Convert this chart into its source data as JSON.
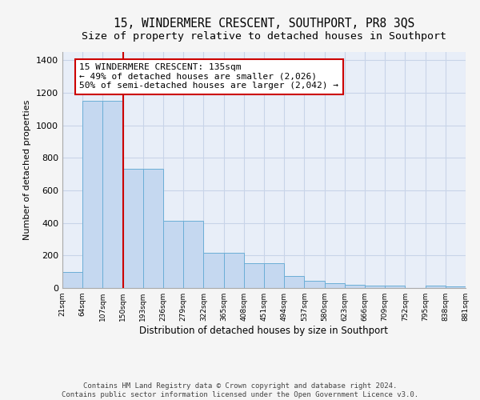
{
  "title": "15, WINDERMERE CRESCENT, SOUTHPORT, PR8 3QS",
  "subtitle": "Size of property relative to detached houses in Southport",
  "xlabel": "Distribution of detached houses by size in Southport",
  "ylabel": "Number of detached properties",
  "bar_values": [
    100,
    1150,
    1150,
    730,
    730,
    415,
    415,
    215,
    215,
    150,
    150,
    75,
    45,
    30,
    20,
    15,
    15,
    2,
    15,
    10
  ],
  "bar_color": "#c5d8f0",
  "bar_edge_color": "#6baed6",
  "x_labels": [
    "21sqm",
    "64sqm",
    "107sqm",
    "150sqm",
    "193sqm",
    "236sqm",
    "279sqm",
    "322sqm",
    "365sqm",
    "408sqm",
    "451sqm",
    "494sqm",
    "537sqm",
    "580sqm",
    "623sqm",
    "666sqm",
    "709sqm",
    "752sqm",
    "795sqm",
    "838sqm",
    "881sqm"
  ],
  "red_line_x": 2.5,
  "annotation_text": "15 WINDERMERE CRESCENT: 135sqm\n← 49% of detached houses are smaller (2,026)\n50% of semi-detached houses are larger (2,042) →",
  "footer_text": "Contains HM Land Registry data © Crown copyright and database right 2024.\nContains public sector information licensed under the Open Government Licence v3.0.",
  "ylim": [
    0,
    1450
  ],
  "yticks": [
    0,
    200,
    400,
    600,
    800,
    1000,
    1200,
    1400
  ],
  "plot_bg_color": "#e8eef8",
  "grid_color": "#c8d4e8",
  "fig_bg_color": "#f5f5f5",
  "title_fontsize": 10.5,
  "subtitle_fontsize": 9.5,
  "ylabel_fontsize": 8,
  "xlabel_fontsize": 8.5,
  "annotation_box_edge_color": "#cc0000",
  "annotation_fontsize": 8,
  "footer_fontsize": 6.5
}
